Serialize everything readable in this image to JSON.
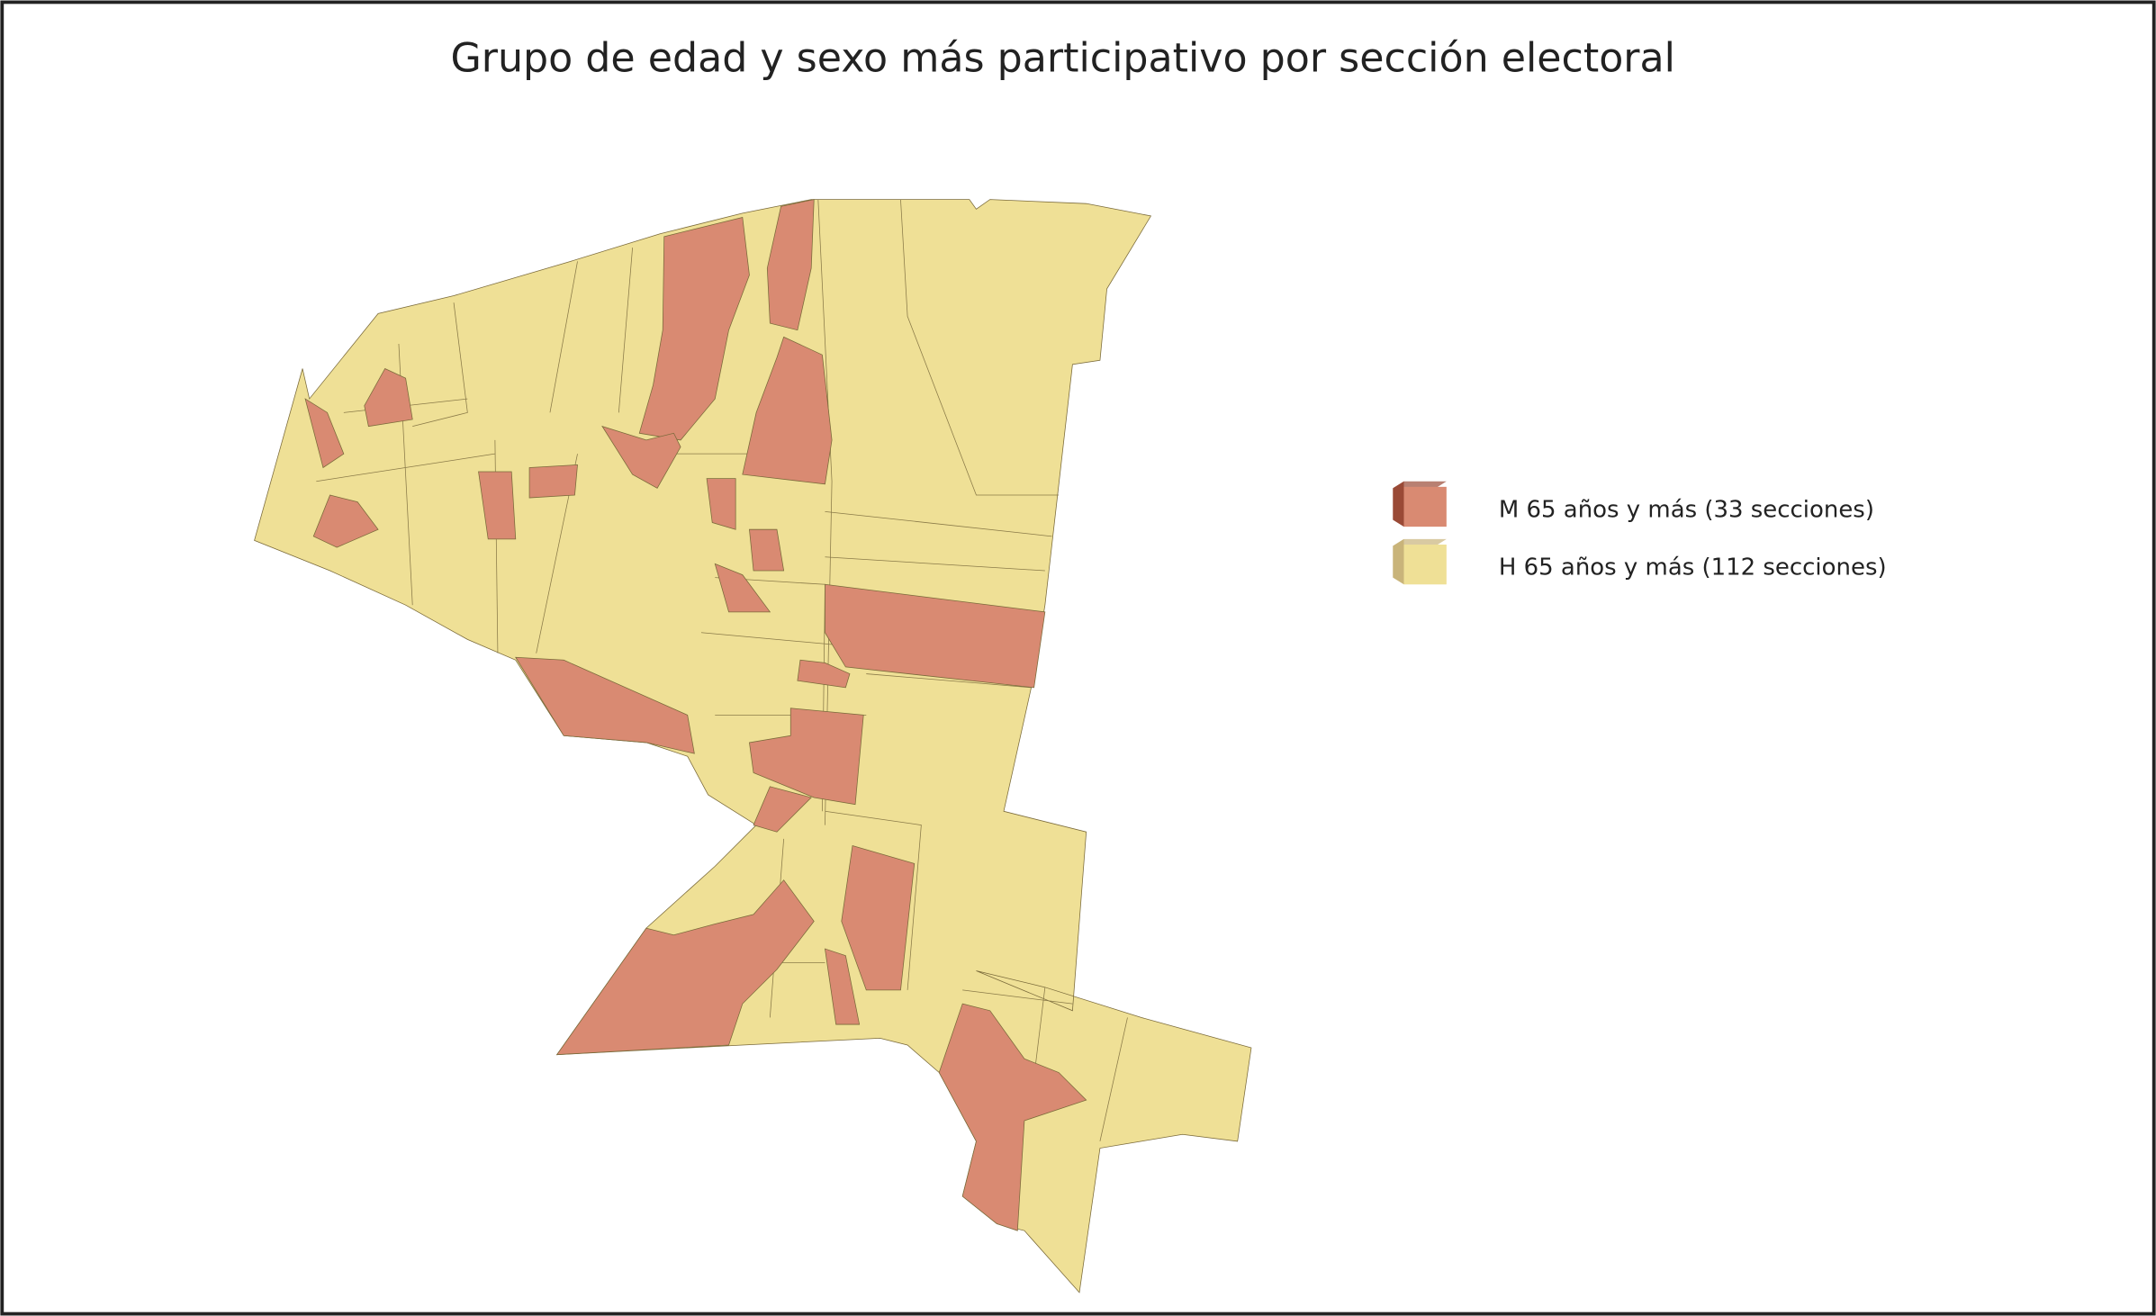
{
  "title": "Grupo de edad y sexo más participativo por sección electoral",
  "legend": [
    {
      "label": "M 65 años y más (33 secciones)",
      "color": "#d98a72",
      "side": "#9a4a36"
    },
    {
      "label": "H 65 años y más (112 secciones)",
      "color": "#efe096",
      "side": "#c9b47a"
    }
  ]
}
